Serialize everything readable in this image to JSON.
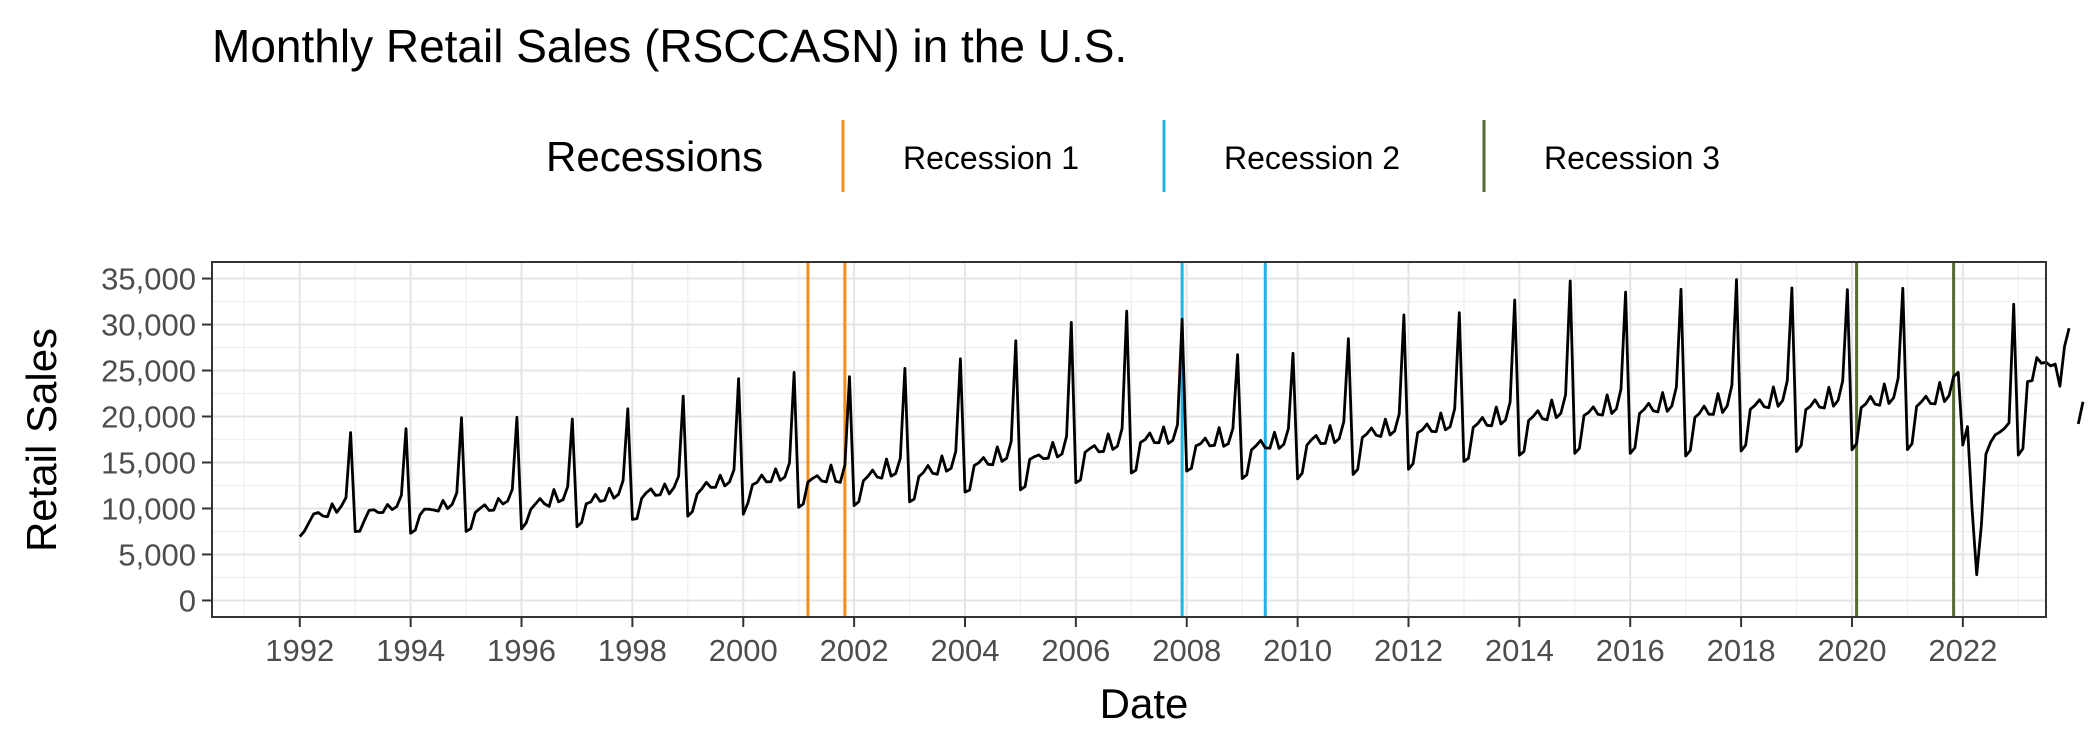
{
  "chart_data": {
    "type": "line",
    "title": "Monthly Retail Sales (RSCCASN) in the U.S.",
    "xlabel": "Date",
    "ylabel": "Retail Sales",
    "xlim": [
      "1990-06-01",
      "2023-07-01"
    ],
    "ylim": [
      -1800,
      36800
    ],
    "x_ticks": [
      "1992",
      "1994",
      "1996",
      "1998",
      "2000",
      "2002",
      "2004",
      "2006",
      "2008",
      "2010",
      "2012",
      "2014",
      "2016",
      "2018",
      "2020",
      "2022"
    ],
    "y_ticks": [
      0,
      5000,
      10000,
      15000,
      20000,
      25000,
      30000,
      35000
    ],
    "y_tick_labels": [
      "0",
      "5,000",
      "10,000",
      "15,000",
      "20,000",
      "25,000",
      "30,000",
      "35,000"
    ],
    "grid": true,
    "legend": {
      "title": "Recessions",
      "position": "top",
      "entries": [
        {
          "name": "Recession 1",
          "color": "#F28E1C"
        },
        {
          "name": "Recession 2",
          "color": "#1EB5E6"
        },
        {
          "name": "Recession 3",
          "color": "#556B2F"
        }
      ]
    },
    "recession_lines": [
      {
        "legend": "Recession 1",
        "dates": [
          "2001-03-01",
          "2001-11-01"
        ]
      },
      {
        "legend": "Recession 2",
        "dates": [
          "2007-12-01",
          "2009-06-01"
        ]
      },
      {
        "legend": "Recession 3",
        "dates": [
          "2020-02-01",
          "2021-11-01"
        ]
      }
    ],
    "series": [
      {
        "color": "#000000",
        "start": "1992-01",
        "note_gap": "missing values after 2019-12 and after 2021-11",
        "values": [
          6938,
          7524,
          8475,
          9401,
          9558,
          9182,
          9103,
          10513,
          9573,
          10254,
          11187,
          18264,
          7502,
          7524,
          8700,
          9794,
          9866,
          9554,
          9565,
          10432,
          9873,
          10211,
          11446,
          18683,
          7314,
          7651,
          9288,
          9930,
          9926,
          9838,
          9710,
          10880,
          9985,
          10455,
          11710,
          19867,
          7508,
          7796,
          9570,
          10001,
          10403,
          9785,
          9825,
          11085,
          10484,
          10817,
          12074,
          19916,
          7775,
          8426,
          9912,
          10483,
          11075,
          10496,
          10225,
          12062,
          10730,
          10966,
          12386,
          19730,
          8017,
          8473,
          10506,
          10706,
          11546,
          10766,
          10889,
          12193,
          11128,
          11534,
          13047,
          20834,
          8810,
          8902,
          11090,
          11709,
          12131,
          11432,
          11480,
          12658,
          11589,
          12284,
          13524,
          22218,
          9160,
          9676,
          11562,
          12124,
          12845,
          12288,
          12290,
          13614,
          12452,
          12868,
          14204,
          24118,
          9381,
          10599,
          12575,
          12835,
          13630,
          12902,
          12908,
          14314,
          13065,
          13423,
          14962,
          24793,
          10129,
          10496,
          12870,
          13267,
          13567,
          12986,
          12887,
          14731,
          12946,
          12834,
          14734,
          24336,
          10315,
          10740,
          13025,
          13500,
          14176,
          13423,
          13296,
          15384,
          13524,
          13800,
          15458,
          25235,
          10721,
          11035,
          13453,
          13916,
          14675,
          13829,
          13713,
          15713,
          14048,
          14365,
          16228,
          26273,
          11781,
          12012,
          14660,
          14981,
          15540,
          14799,
          14752,
          16698,
          15121,
          15460,
          17289,
          28227,
          12035,
          12390,
          15330,
          15633,
          15830,
          15415,
          15464,
          17200,
          15610,
          15921,
          17876,
          30234,
          12806,
          13112,
          16108,
          16500,
          16838,
          16152,
          16213,
          18125,
          16409,
          16779,
          18715,
          31457,
          13853,
          14164,
          17185,
          17492,
          18203,
          17163,
          17149,
          18873,
          17062,
          17428,
          19107,
          30568,
          14062,
          14369,
          16820,
          17040,
          17656,
          16808,
          16874,
          18792,
          16756,
          17042,
          18695,
          26719,
          13246,
          13660,
          16360,
          16812,
          17405,
          16588,
          16553,
          18298,
          16526,
          16975,
          18687,
          26875,
          13220,
          13850,
          16886,
          17474,
          17935,
          17051,
          17084,
          19026,
          17147,
          17583,
          19441,
          28474,
          13690,
          14256,
          17710,
          18120,
          18752,
          17965,
          17831,
          19706,
          17991,
          18417,
          20275,
          31048,
          14265,
          14880,
          18242,
          18549,
          19185,
          18392,
          18351,
          20382,
          18560,
          18876,
          20851,
          31293,
          15112,
          15467,
          18820,
          19238,
          19889,
          19046,
          18985,
          21029,
          19188,
          19612,
          21566,
          32664,
          15795,
          16198,
          19561,
          20012,
          20634,
          19750,
          19645,
          21798,
          19875,
          20362,
          22374,
          34732,
          15999,
          16532,
          20106,
          20451,
          21041,
          20238,
          20158,
          22346,
          20324,
          20834,
          22998,
          33523,
          16001,
          16601,
          20331,
          20771,
          21441,
          20614,
          20503,
          22605,
          20563,
          21146,
          23215,
          33830,
          15701,
          16306,
          19891,
          20351,
          21134,
          20251,
          20228,
          22491,
          20437,
          21148,
          23406,
          34876,
          16247,
          16892,
          20783,
          21219,
          21831,
          21057,
          20959,
          23219,
          21106,
          21738,
          23898,
          33981,
          16192,
          16858,
          20737,
          21120,
          21812,
          21021,
          20921,
          23178,
          21122,
          21763,
          23869,
          33802,
          16380,
          17054,
          20971,
          21372,
          22181,
          21353,
          21215,
          23544,
          21419,
          22021,
          24172,
          33942,
          16400,
          17032,
          21084,
          21584,
          22208,
          21410,
          21366,
          23708,
          21623,
          22248,
          24340,
          24800,
          16900,
          18900,
          9900,
          2800,
          8100,
          15900,
          17200,
          18000,
          18300,
          18700,
          19300,
          32200,
          15800,
          16500,
          23800,
          23900,
          26400,
          25800,
          25900,
          25500,
          25700,
          23300,
          27600,
          29600,
          null,
          19200,
          21600
        ]
      }
    ]
  }
}
